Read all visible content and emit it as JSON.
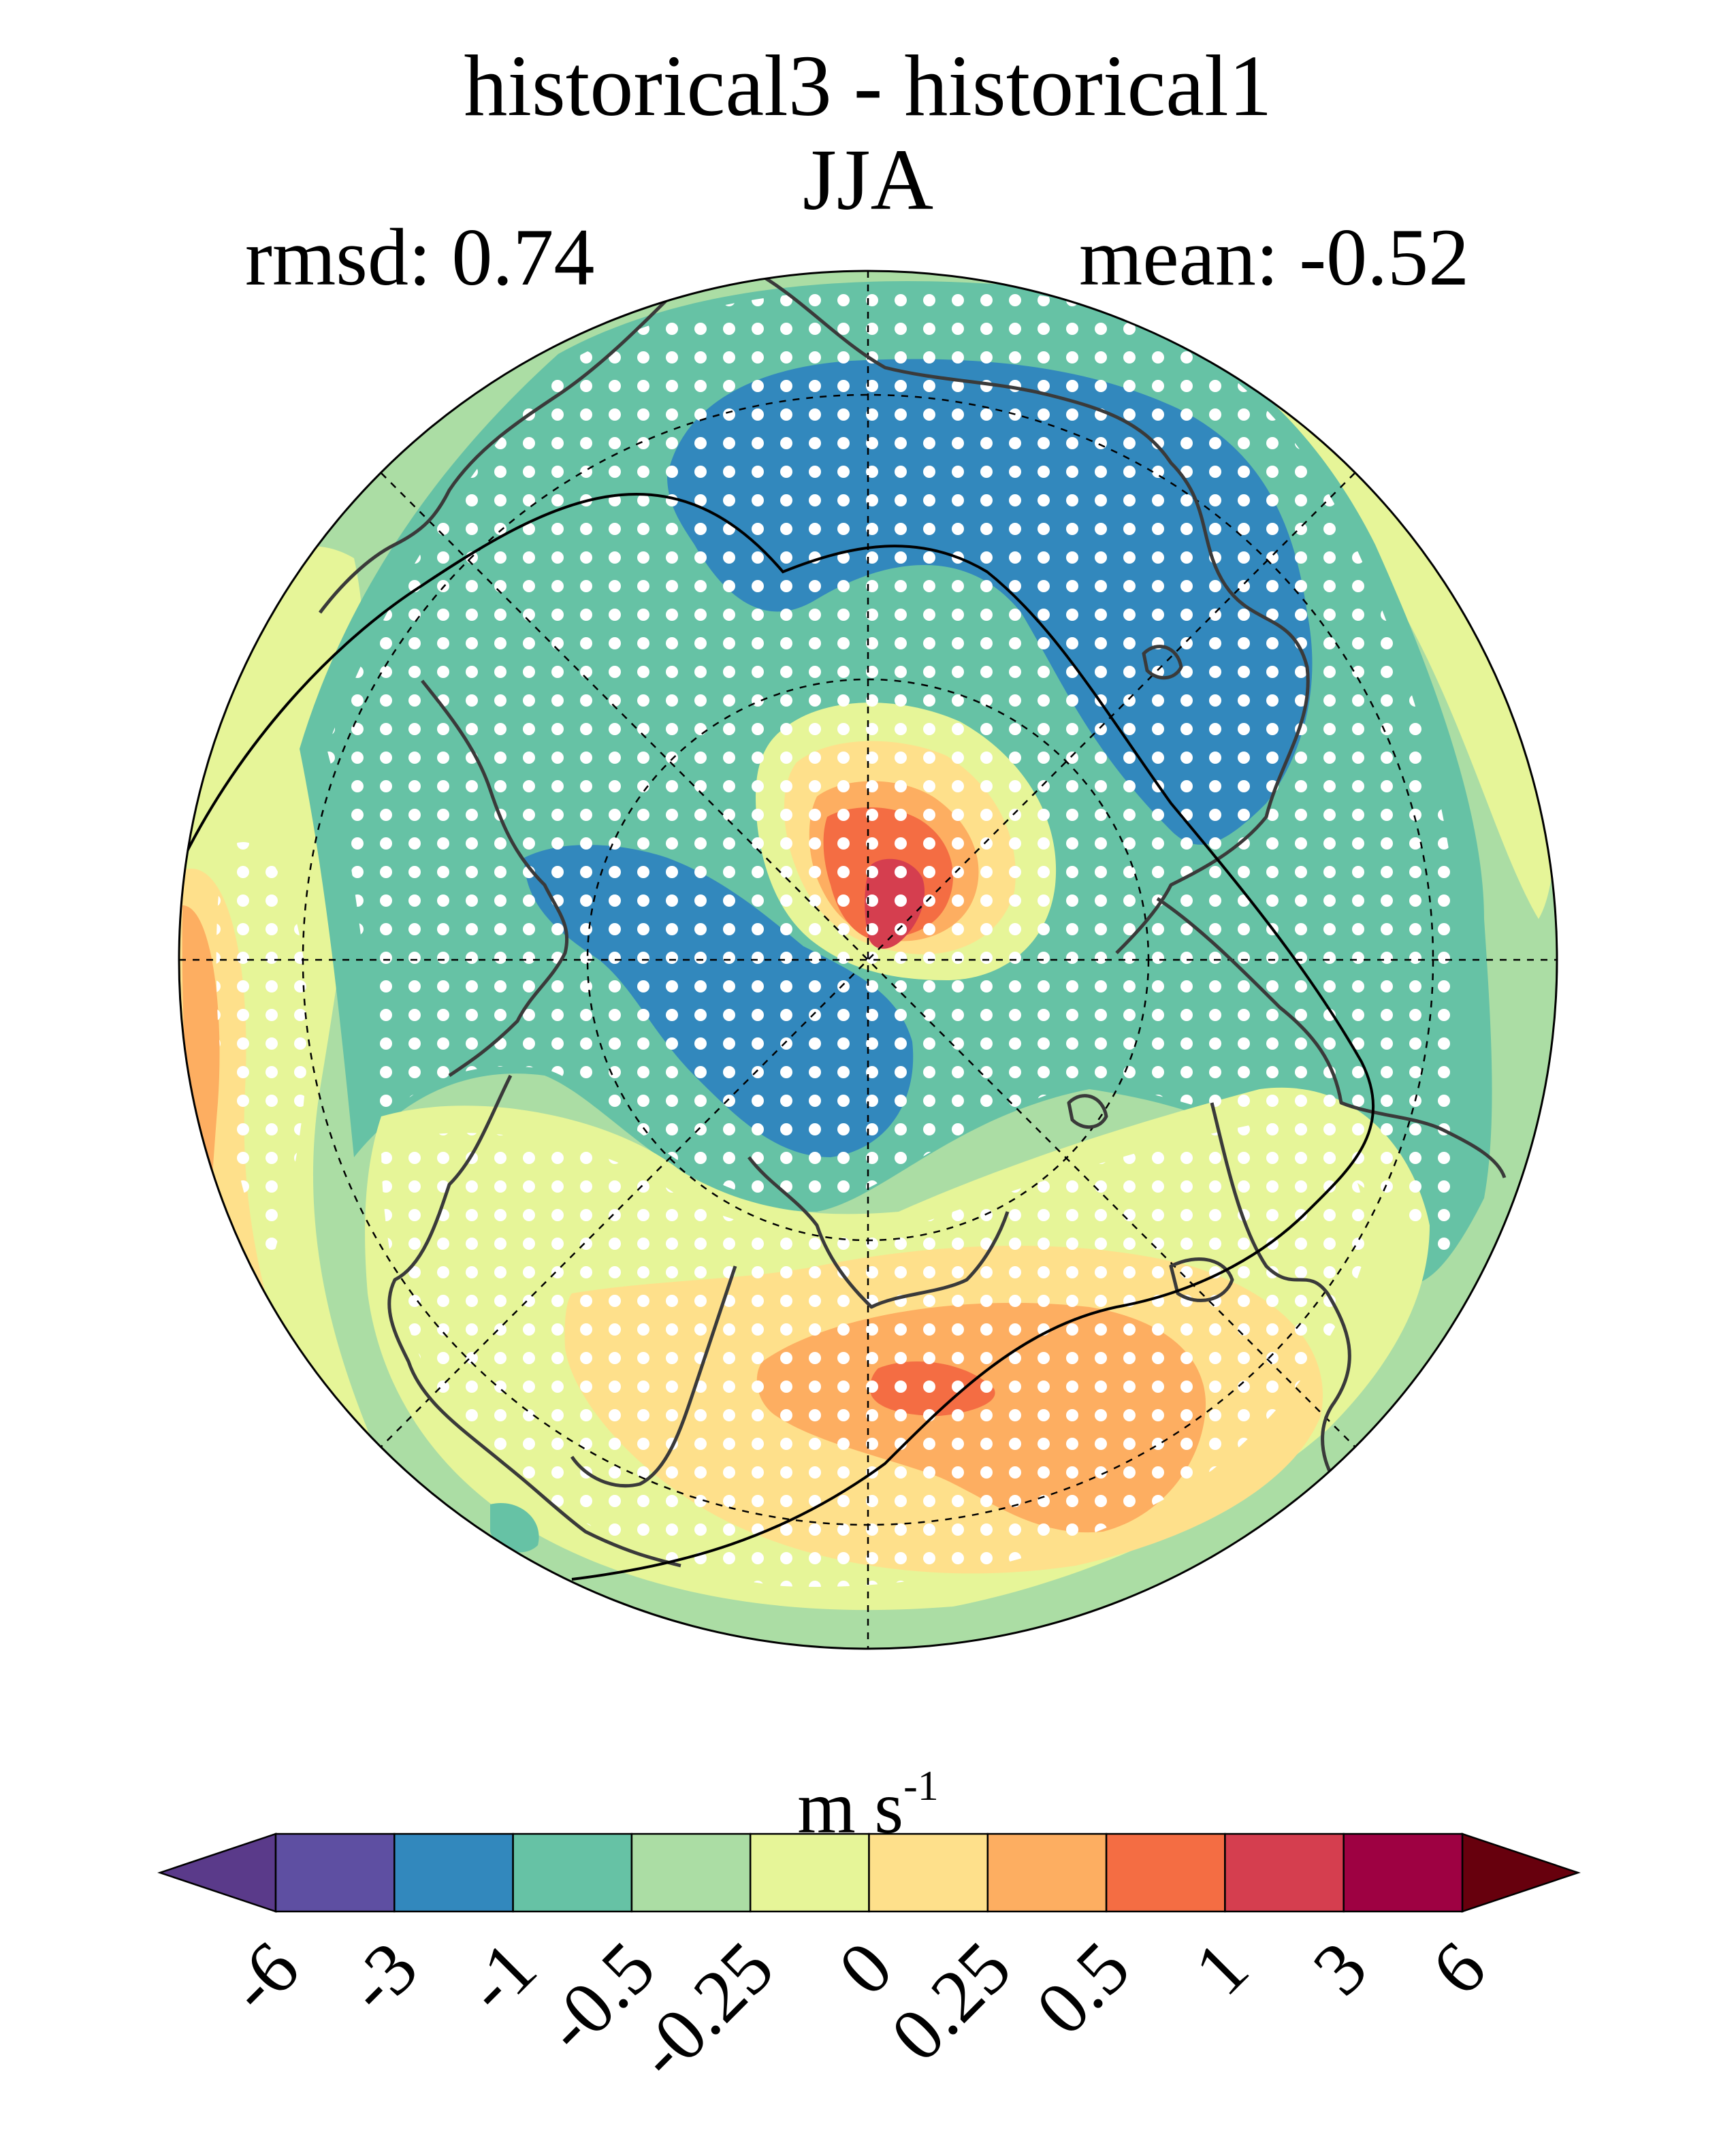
{
  "title": {
    "line1": "historical3 - historical1",
    "line2": "JJA"
  },
  "stats": {
    "rmsd": "rmsd: 0.74",
    "mean": "mean: -0.52"
  },
  "colorbar": {
    "units_base": "m s",
    "units_exponent": "-1",
    "levels": [
      "-6",
      "-3",
      "-1",
      "-0.5",
      "-0.25",
      "0",
      "0.25",
      "0.5",
      "1",
      "3",
      "6"
    ],
    "colors": [
      "#5e4fa2",
      "#3288bd",
      "#66c2a5",
      "#abdda4",
      "#e6f598",
      "#fee08b",
      "#fdae61",
      "#f46d43",
      "#d53e4f",
      "#9e0142"
    ],
    "under_color": "#5a3a8a",
    "over_color": "#67000d"
  },
  "map": {
    "projection": "north-polar-stereographic",
    "variable": "wind speed difference",
    "stippling": "significant",
    "colors": {
      "background": "#abdda4",
      "blue": "#3288bd",
      "teal": "#66c2a5",
      "lightgreen": "#abdda4",
      "yellowgreen": "#e6f598",
      "yellow": "#fee08b",
      "orange": "#fdae61",
      "redorange": "#f46d43",
      "red": "#d53e4f",
      "coast": "#3a3a3a"
    }
  }
}
